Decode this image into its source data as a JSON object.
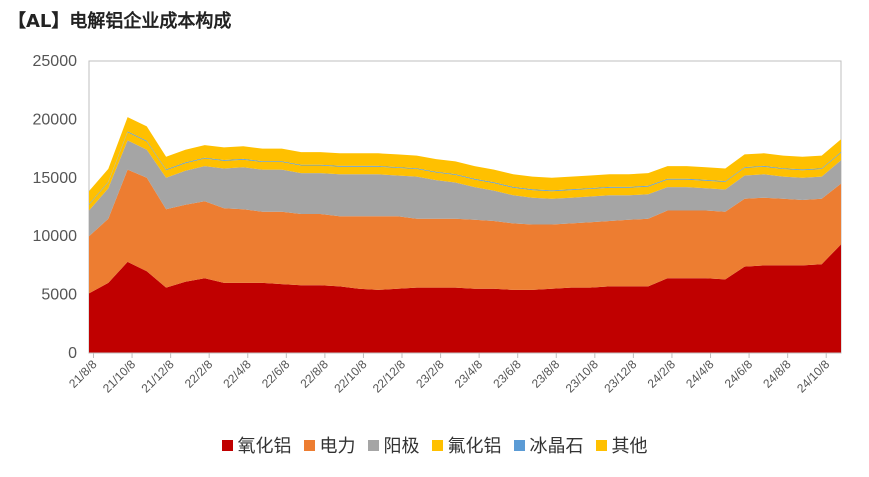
{
  "title": "【AL】电解铝企业成本构成",
  "chart_data": {
    "type": "area",
    "stacked": true,
    "title": "【AL】电解铝企业成本构成",
    "ylim": [
      0,
      25000
    ],
    "yticks": [
      0,
      5000,
      10000,
      15000,
      20000,
      25000
    ],
    "xlim": [
      "2021-08",
      "2024-11"
    ],
    "xticks": [
      "21/8/8",
      "21/10/8",
      "21/12/8",
      "22/2/8",
      "22/4/8",
      "22/6/8",
      "22/8/8",
      "22/10/8",
      "22/12/8",
      "23/2/8",
      "23/4/8",
      "23/6/8",
      "23/8/8",
      "23/10/8",
      "23/12/8",
      "24/2/8",
      "24/4/8",
      "24/6/8",
      "24/8/8",
      "24/10/8"
    ],
    "x": [
      "2021-08",
      "2021-09",
      "2021-10",
      "2021-11",
      "2021-12",
      "2022-01",
      "2022-02",
      "2022-03",
      "2022-04",
      "2022-05",
      "2022-06",
      "2022-07",
      "2022-08",
      "2022-09",
      "2022-10",
      "2022-11",
      "2022-12",
      "2023-01",
      "2023-02",
      "2023-03",
      "2023-04",
      "2023-05",
      "2023-06",
      "2023-07",
      "2023-08",
      "2023-09",
      "2023-10",
      "2023-11",
      "2023-12",
      "2024-01",
      "2024-02",
      "2024-03",
      "2024-04",
      "2024-05",
      "2024-06",
      "2024-07",
      "2024-08",
      "2024-09",
      "2024-10",
      "2024-11"
    ],
    "grid": false,
    "legend_position": "bottom",
    "series": [
      {
        "name": "氧化铝",
        "color": "#C00000",
        "values": [
          5100,
          6000,
          7800,
          7000,
          5600,
          6100,
          6400,
          6000,
          6000,
          6000,
          5900,
          5800,
          5800,
          5700,
          5500,
          5400,
          5500,
          5600,
          5600,
          5600,
          5500,
          5500,
          5400,
          5400,
          5500,
          5600,
          5600,
          5700,
          5700,
          5700,
          6400,
          6400,
          6400,
          6300,
          7400,
          7500,
          7500,
          7500,
          7600,
          9300
        ]
      },
      {
        "name": "电力",
        "color": "#ED7D31",
        "values": [
          4900,
          5500,
          7900,
          8000,
          6700,
          6600,
          6600,
          6400,
          6300,
          6100,
          6200,
          6100,
          6100,
          6000,
          6200,
          6300,
          6200,
          5900,
          5900,
          5900,
          5900,
          5800,
          5700,
          5600,
          5500,
          5500,
          5600,
          5600,
          5700,
          5800,
          5800,
          5800,
          5800,
          5800,
          5800,
          5800,
          5700,
          5600,
          5600,
          5200
        ]
      },
      {
        "name": "阳极",
        "color": "#A5A5A5",
        "values": [
          2200,
          2600,
          2500,
          2400,
          2700,
          2900,
          3000,
          3400,
          3600,
          3600,
          3600,
          3500,
          3500,
          3600,
          3600,
          3600,
          3500,
          3600,
          3300,
          3100,
          2800,
          2600,
          2400,
          2300,
          2200,
          2200,
          2200,
          2200,
          2100,
          2100,
          2000,
          2000,
          1900,
          1900,
          2000,
          2000,
          1900,
          1900,
          1900,
          2000
        ]
      },
      {
        "name": "氟化铝",
        "color": "#FFC000",
        "values": [
          500,
          500,
          700,
          700,
          650,
          650,
          650,
          650,
          650,
          650,
          650,
          650,
          650,
          650,
          650,
          650,
          650,
          650,
          650,
          650,
          650,
          650,
          650,
          650,
          650,
          650,
          650,
          650,
          650,
          650,
          650,
          650,
          650,
          650,
          650,
          650,
          650,
          650,
          650,
          650
        ]
      },
      {
        "name": "冰晶石",
        "color": "#5B9BD5",
        "values": [
          60,
          60,
          70,
          70,
          70,
          70,
          70,
          70,
          70,
          70,
          70,
          70,
          70,
          70,
          70,
          70,
          70,
          70,
          70,
          70,
          70,
          70,
          70,
          70,
          70,
          70,
          70,
          70,
          70,
          70,
          70,
          70,
          70,
          70,
          70,
          70,
          70,
          70,
          70,
          70
        ]
      },
      {
        "name": "其他",
        "color": "#FFC000",
        "values": [
          1100,
          1100,
          1230,
          1230,
          1080,
          1080,
          1080,
          1080,
          1080,
          1080,
          1080,
          1080,
          1080,
          1080,
          1080,
          1080,
          1080,
          1080,
          1080,
          1080,
          1080,
          1080,
          1080,
          1080,
          1080,
          1080,
          1080,
          1080,
          1080,
          1080,
          1080,
          1080,
          1080,
          1080,
          1080,
          1080,
          1080,
          1080,
          1080,
          1080
        ]
      }
    ]
  }
}
